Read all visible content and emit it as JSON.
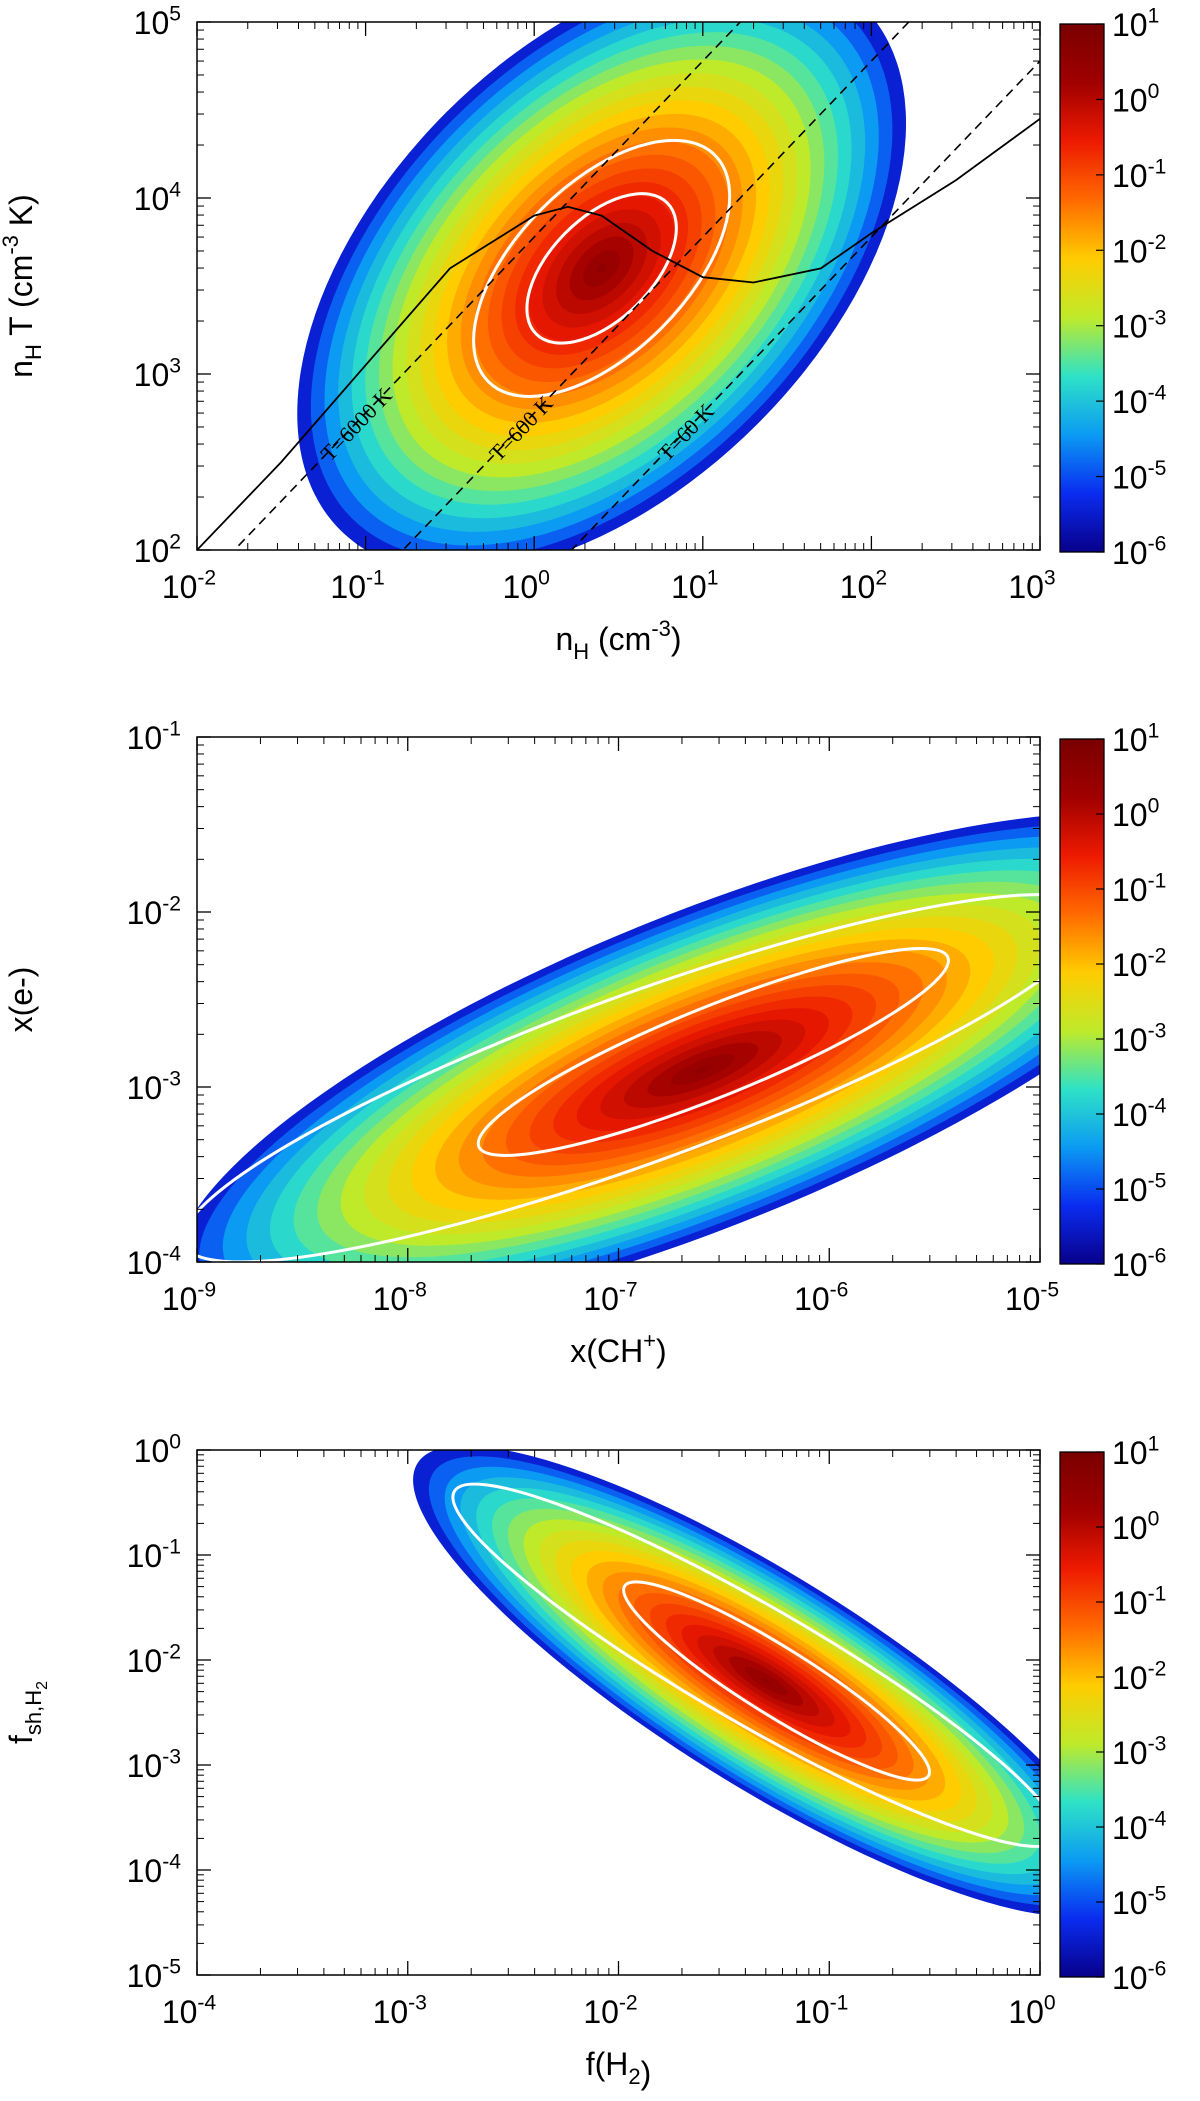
{
  "figure": {
    "colorbar": {
      "colors": [
        "#08008a",
        "#0a2cf0",
        "#0b9bf3",
        "#2fe2c6",
        "#bfea2a",
        "#ffcc00",
        "#ff6a00",
        "#ee1a00",
        "#a00000",
        "#7a0000"
      ],
      "ticks": [
        {
          "value": 1,
          "base": "10",
          "exp": "1"
        },
        {
          "value": 0,
          "base": "10",
          "exp": "0"
        },
        {
          "value": -1,
          "base": "10",
          "exp": "-1"
        },
        {
          "value": -2,
          "base": "10",
          "exp": "-2"
        },
        {
          "value": -3,
          "base": "10",
          "exp": "-3"
        },
        {
          "value": -4,
          "base": "10",
          "exp": "-4"
        },
        {
          "value": -5,
          "base": "10",
          "exp": "-5"
        },
        {
          "value": -6,
          "base": "10",
          "exp": "-6"
        }
      ]
    }
  },
  "chart_data": [
    {
      "type": "heatmap",
      "id": "panel1",
      "xlabel": {
        "base": "n",
        "sub": "H",
        "rest": " (cm",
        "sup": "-3",
        "end": ")"
      },
      "ylabel": {
        "base": "n",
        "sub": "H",
        "rest": " T (cm",
        "sup": "-3",
        "end": " K)"
      },
      "xscale": "log",
      "yscale": "log",
      "xlim_exp": [
        -2,
        3
      ],
      "ylim_exp": [
        2,
        5
      ],
      "xticks": [
        {
          "base": "10",
          "exp": "-2"
        },
        {
          "base": "10",
          "exp": "-1"
        },
        {
          "base": "10",
          "exp": "0"
        },
        {
          "base": "10",
          "exp": "1"
        },
        {
          "base": "10",
          "exp": "2"
        },
        {
          "base": "10",
          "exp": "3"
        }
      ],
      "yticks": [
        {
          "base": "10",
          "exp": "2"
        },
        {
          "base": "10",
          "exp": "3"
        },
        {
          "base": "10",
          "exp": "4"
        },
        {
          "base": "10",
          "exp": "5"
        }
      ],
      "colorbar_range_exp": [
        -6,
        1
      ],
      "density": {
        "peak_log_x": 0.4,
        "peak_log_y": 3.6,
        "peak_value_exp": 0.6,
        "blobs": [
          {
            "cx": 0.4,
            "cy": 3.6,
            "sa": 0.9,
            "sb": 0.35,
            "angle_deg": 45,
            "amp": 1.0
          }
        ]
      },
      "contours_white": [
        {
          "cx": 0.4,
          "cy": 3.6,
          "a": 0.95,
          "b": 0.3,
          "angle_deg": 45
        },
        {
          "cx": 0.4,
          "cy": 3.6,
          "a": 0.55,
          "b": 0.18,
          "angle_deg": 45
        }
      ],
      "isotherms": [
        {
          "label": "T=6000 K",
          "T": 6000
        },
        {
          "label": "T=600 K",
          "T": 600
        },
        {
          "label": "T=60 K",
          "T": 60
        }
      ],
      "equilibrium_curve": [
        [
          -2.0,
          2.0
        ],
        [
          -1.5,
          2.5
        ],
        [
          -1.0,
          3.05
        ],
        [
          -0.5,
          3.6
        ],
        [
          0.0,
          3.9
        ],
        [
          0.2,
          3.95
        ],
        [
          0.4,
          3.9
        ],
        [
          0.7,
          3.7
        ],
        [
          1.0,
          3.55
        ],
        [
          1.3,
          3.52
        ],
        [
          1.7,
          3.6
        ],
        [
          2.0,
          3.8
        ],
        [
          2.5,
          4.1
        ],
        [
          3.0,
          4.45
        ]
      ]
    },
    {
      "type": "heatmap",
      "id": "panel2",
      "xlabel": {
        "base": "x(CH",
        "sup": "+",
        "end": ")"
      },
      "ylabel": {
        "base": "x(e-)"
      },
      "xscale": "log",
      "yscale": "log",
      "xlim_exp": [
        -9,
        -5
      ],
      "ylim_exp": [
        -4,
        -1
      ],
      "xticks": [
        {
          "base": "10",
          "exp": "-9"
        },
        {
          "base": "10",
          "exp": "-8"
        },
        {
          "base": "10",
          "exp": "-7"
        },
        {
          "base": "10",
          "exp": "-6"
        },
        {
          "base": "10",
          "exp": "-5"
        }
      ],
      "yticks": [
        {
          "base": "10",
          "exp": "-4"
        },
        {
          "base": "10",
          "exp": "-3"
        },
        {
          "base": "10",
          "exp": "-2"
        },
        {
          "base": "10",
          "exp": "-1"
        }
      ],
      "colorbar_range_exp": [
        -6,
        1
      ],
      "density": {
        "peak_log_x": -6.6,
        "peak_log_y": -2.9,
        "peak_value_exp": 0.5,
        "blobs": [
          {
            "cx": -6.6,
            "cy": -2.9,
            "sa": 1.1,
            "sb": 0.25,
            "angle_deg": 22,
            "amp": 1.0
          }
        ]
      },
      "contours_white": [
        {
          "cx": -6.9,
          "cy": -2.95,
          "a": 2.3,
          "b": 0.3,
          "angle_deg": 20
        },
        {
          "cx": -6.55,
          "cy": -2.8,
          "a": 1.2,
          "b": 0.16,
          "angle_deg": 22
        }
      ]
    },
    {
      "type": "heatmap",
      "id": "panel3",
      "xlabel": {
        "base": "f(H",
        "sub": "2",
        "end": ")"
      },
      "ylabel": {
        "base": "f",
        "sub": "sh,H",
        "subsub": "2"
      },
      "xscale": "log",
      "yscale": "log",
      "xlim_exp": [
        -4,
        0
      ],
      "ylim_exp": [
        -5,
        0
      ],
      "xticks": [
        {
          "base": "10",
          "exp": "-4"
        },
        {
          "base": "10",
          "exp": "-3"
        },
        {
          "base": "10",
          "exp": "-2"
        },
        {
          "base": "10",
          "exp": "-1"
        },
        {
          "base": "10",
          "exp": "0"
        }
      ],
      "yticks": [
        {
          "base": "10",
          "exp": "-5"
        },
        {
          "base": "10",
          "exp": "-4"
        },
        {
          "base": "10",
          "exp": "-3"
        },
        {
          "base": "10",
          "exp": "-2"
        },
        {
          "base": "10",
          "exp": "-1"
        },
        {
          "base": "10",
          "exp": "0"
        }
      ],
      "colorbar_range_exp": [
        -6,
        1
      ],
      "density": {
        "peak_log_x": -1.3,
        "peak_log_y": -2.2,
        "peak_value_exp": 0.5,
        "blobs": [
          {
            "cx": -1.3,
            "cy": -2.2,
            "sa": 0.8,
            "sb": 0.28,
            "angle_deg": -32,
            "amp": 1.0
          }
        ]
      },
      "contours_white": [
        {
          "cx": -1.35,
          "cy": -2.05,
          "a": 1.65,
          "b": 0.35,
          "angle_deg": -30
        },
        {
          "cx": -1.25,
          "cy": -2.2,
          "a": 0.85,
          "b": 0.2,
          "angle_deg": -32
        }
      ]
    }
  ]
}
